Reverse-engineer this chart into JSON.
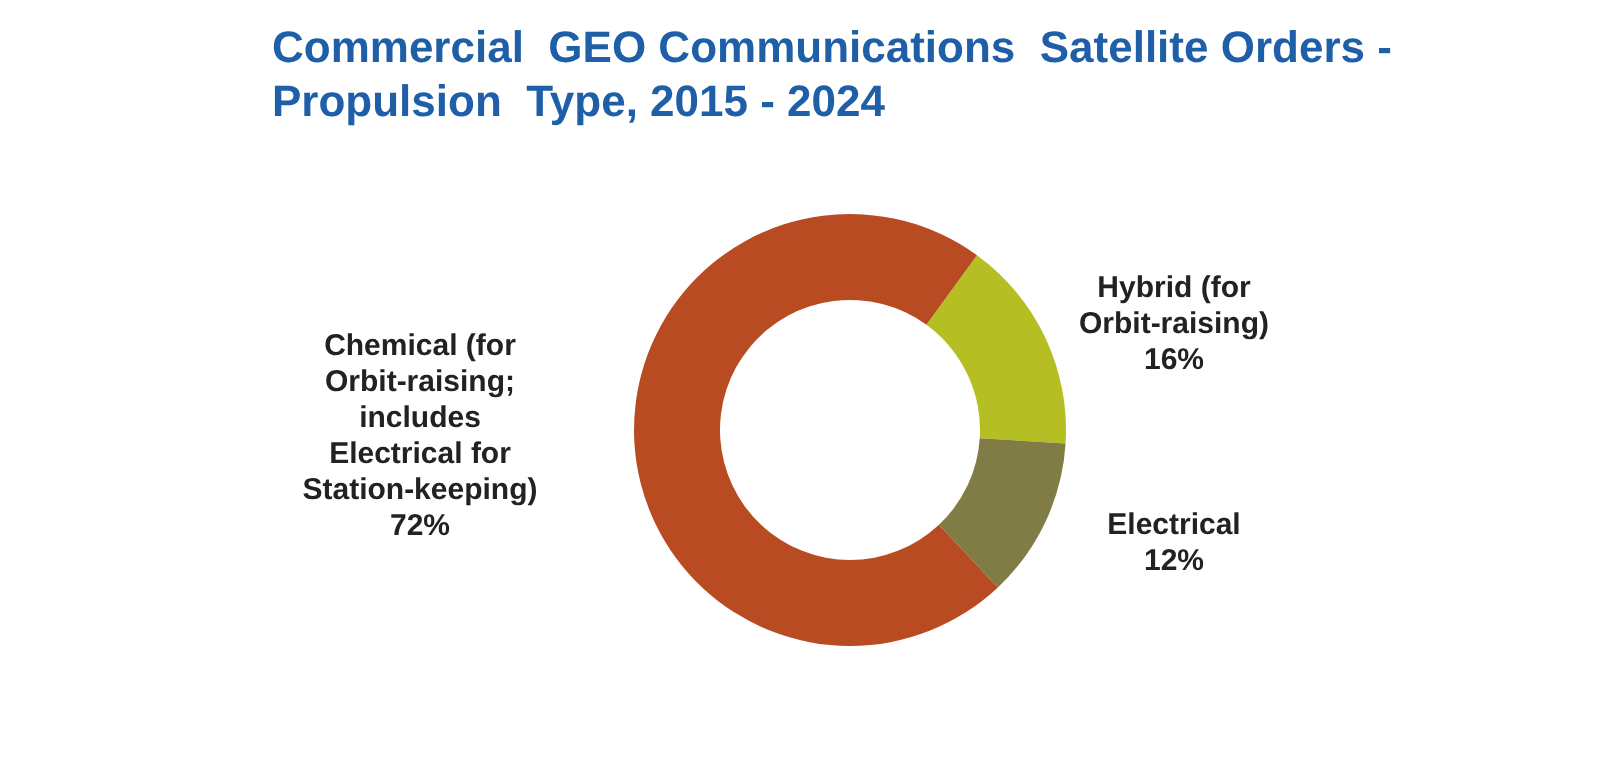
{
  "chart_data": {
    "type": "donut",
    "title": "Commercial  GEO Communications  Satellite Orders - Propulsion  Type, 2015 - 2024",
    "categories": [
      "Hybrid (for Orbit-raising)",
      "Electrical",
      "Chemical (for Orbit-raising; includes Electrical for Station-keeping)"
    ],
    "values": [
      16,
      12,
      72
    ],
    "colors": [
      "#b5bf24",
      "#7f7d45",
      "#b84b21"
    ],
    "value_labels": [
      "16%",
      "12%",
      "72%"
    ],
    "legend": false
  }
}
